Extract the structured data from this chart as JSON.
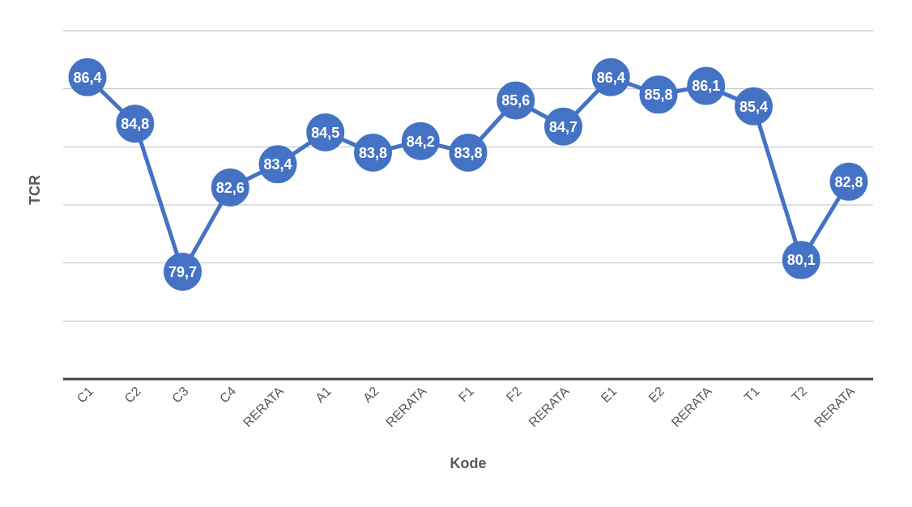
{
  "chart_data": {
    "type": "line",
    "xlabel": "Kode",
    "ylabel": "TCR",
    "categories": [
      "C1",
      "C2",
      "C3",
      "C4",
      "RERATA",
      "A1",
      "A2",
      "RERATA",
      "F1",
      "F2",
      "RERATA",
      "E1",
      "E2",
      "RERATA",
      "T1",
      "T2",
      "RERATA"
    ],
    "series": [
      {
        "color": "#4472c4",
        "values": [
          86.4,
          84.8,
          79.7,
          82.6,
          83.4,
          84.5,
          83.8,
          84.2,
          83.8,
          85.6,
          84.7,
          86.4,
          85.8,
          86.1,
          85.4,
          80.1,
          82.8
        ],
        "value_labels": [
          "86,4",
          "84,8",
          "79,7",
          "82,6",
          "83,4",
          "84,5",
          "83,8",
          "84,2",
          "83,8",
          "85,6",
          "84,7",
          "86,4",
          "85,8",
          "86,1",
          "85,4",
          "80,1",
          "82,8"
        ]
      }
    ],
    "ylim": [
      76,
      88
    ],
    "yticks": [
      {
        "value": 76,
        "label": null
      },
      {
        "value": 78,
        "label": null
      },
      {
        "value": 80,
        "label": null
      },
      {
        "value": 82,
        "label": null
      },
      {
        "value": 84,
        "label": null
      },
      {
        "value": 86,
        "label": null
      },
      {
        "value": 88,
        "label": null
      }
    ],
    "tick_labels": "x",
    "grid": "y",
    "marker": "circle",
    "line_style": "solid",
    "legend": false
  }
}
